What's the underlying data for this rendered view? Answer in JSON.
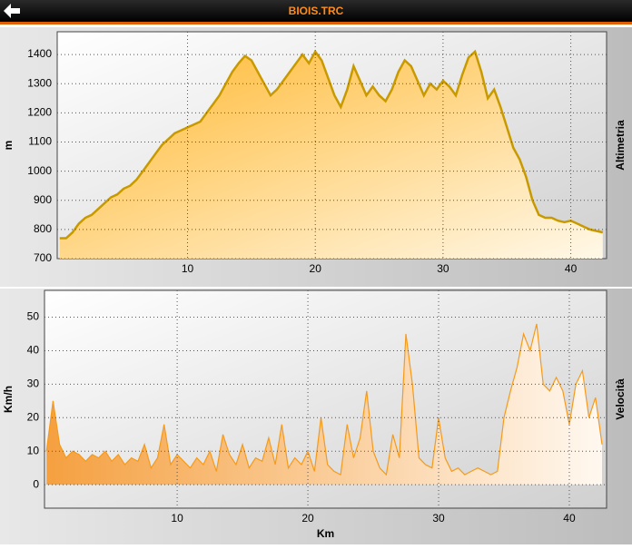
{
  "header": {
    "title": "BIOIS.TRC"
  },
  "chart_data": [
    {
      "type": "area",
      "title": "Altimetria",
      "ylabel": "m",
      "x": [
        0,
        0.5,
        1,
        1.5,
        2,
        2.5,
        3,
        3.5,
        4,
        4.5,
        5,
        5.5,
        6,
        6.5,
        7,
        7.5,
        8,
        8.5,
        9,
        9.5,
        10,
        10.5,
        11,
        11.5,
        12,
        12.5,
        13,
        13.5,
        14,
        14.5,
        15,
        15.5,
        16,
        16.5,
        17,
        17.5,
        18,
        18.5,
        19,
        19.5,
        20,
        20.5,
        21,
        21.5,
        22,
        22.5,
        23,
        23.5,
        24,
        24.5,
        25,
        25.5,
        26,
        26.5,
        27,
        27.5,
        28,
        28.5,
        29,
        29.5,
        30,
        30.5,
        31,
        31.5,
        32,
        32.5,
        33,
        33.5,
        34,
        34.5,
        35,
        35.5,
        36,
        36.5,
        37,
        37.5,
        38,
        38.5,
        39,
        39.5,
        40,
        40.5,
        41,
        41.5,
        42,
        42.5
      ],
      "series": [
        {
          "name": "Altimetria",
          "color": "#c89a00",
          "fill": "#ffc040",
          "values": [
            770,
            770,
            790,
            820,
            840,
            850,
            870,
            890,
            910,
            920,
            940,
            950,
            970,
            1000,
            1030,
            1060,
            1090,
            1110,
            1130,
            1140,
            1150,
            1160,
            1170,
            1200,
            1230,
            1260,
            1300,
            1340,
            1370,
            1395,
            1380,
            1340,
            1300,
            1260,
            1280,
            1310,
            1340,
            1370,
            1400,
            1370,
            1410,
            1380,
            1320,
            1260,
            1220,
            1280,
            1360,
            1310,
            1260,
            1290,
            1260,
            1240,
            1280,
            1340,
            1380,
            1360,
            1310,
            1260,
            1300,
            1280,
            1310,
            1290,
            1260,
            1330,
            1390,
            1410,
            1340,
            1250,
            1280,
            1220,
            1150,
            1080,
            1040,
            980,
            900,
            850,
            840,
            840,
            830,
            825,
            830,
            820,
            810,
            800,
            795,
            790
          ]
        }
      ],
      "xlim": [
        -0.2,
        42.8
      ],
      "xticks": [
        10,
        20,
        30,
        40
      ],
      "ylim": [
        700,
        1478
      ],
      "yticks": [
        700,
        800,
        900,
        1000,
        1100,
        1200,
        1300,
        1400
      ],
      "grid": true
    },
    {
      "type": "area",
      "title": "Velocità",
      "ylabel": "Km/h",
      "xlabel": "Km",
      "x": [
        0,
        0.5,
        1,
        1.5,
        2,
        2.5,
        3,
        3.5,
        4,
        4.5,
        5,
        5.5,
        6,
        6.5,
        7,
        7.5,
        8,
        8.5,
        9,
        9.5,
        10,
        10.5,
        11,
        11.5,
        12,
        12.5,
        13,
        13.5,
        14,
        14.5,
        15,
        15.5,
        16,
        16.5,
        17,
        17.5,
        18,
        18.5,
        19,
        19.5,
        20,
        20.5,
        21,
        21.5,
        22,
        22.5,
        23,
        23.5,
        24,
        24.5,
        25,
        25.5,
        26,
        26.5,
        27,
        27.5,
        28,
        28.5,
        29,
        29.5,
        30,
        30.5,
        31,
        31.5,
        32,
        32.5,
        33,
        33.5,
        34,
        34.5,
        35,
        35.5,
        36,
        36.5,
        37,
        37.5,
        38,
        38.5,
        39,
        39.5,
        40,
        40.5,
        41,
        41.5,
        42,
        42.5
      ],
      "series": [
        {
          "name": "Velocità",
          "color": "#f59a1a",
          "fill": "#f5a040",
          "values": [
            10,
            25,
            12,
            8,
            10,
            9,
            7,
            9,
            8,
            10,
            7,
            9,
            6,
            8,
            7,
            12,
            5,
            8,
            18,
            6,
            9,
            7,
            5,
            8,
            6,
            10,
            4,
            15,
            9,
            6,
            12,
            5,
            8,
            7,
            14,
            6,
            18,
            5,
            8,
            6,
            10,
            4,
            20,
            6,
            4,
            3,
            18,
            8,
            14,
            28,
            10,
            5,
            3,
            15,
            8,
            45,
            30,
            8,
            6,
            5,
            20,
            8,
            4,
            5,
            3,
            4,
            5,
            4,
            3,
            4,
            20,
            28,
            35,
            45,
            40,
            48,
            30,
            28,
            32,
            28,
            18,
            30,
            34,
            20,
            26,
            12
          ]
        }
      ],
      "xlim": [
        -0.15,
        42.85
      ],
      "xticks": [
        10,
        20,
        30,
        40
      ],
      "ylim": [
        -7,
        58
      ],
      "yticks": [
        0,
        10,
        20,
        30,
        40,
        50
      ],
      "grid": true
    }
  ]
}
